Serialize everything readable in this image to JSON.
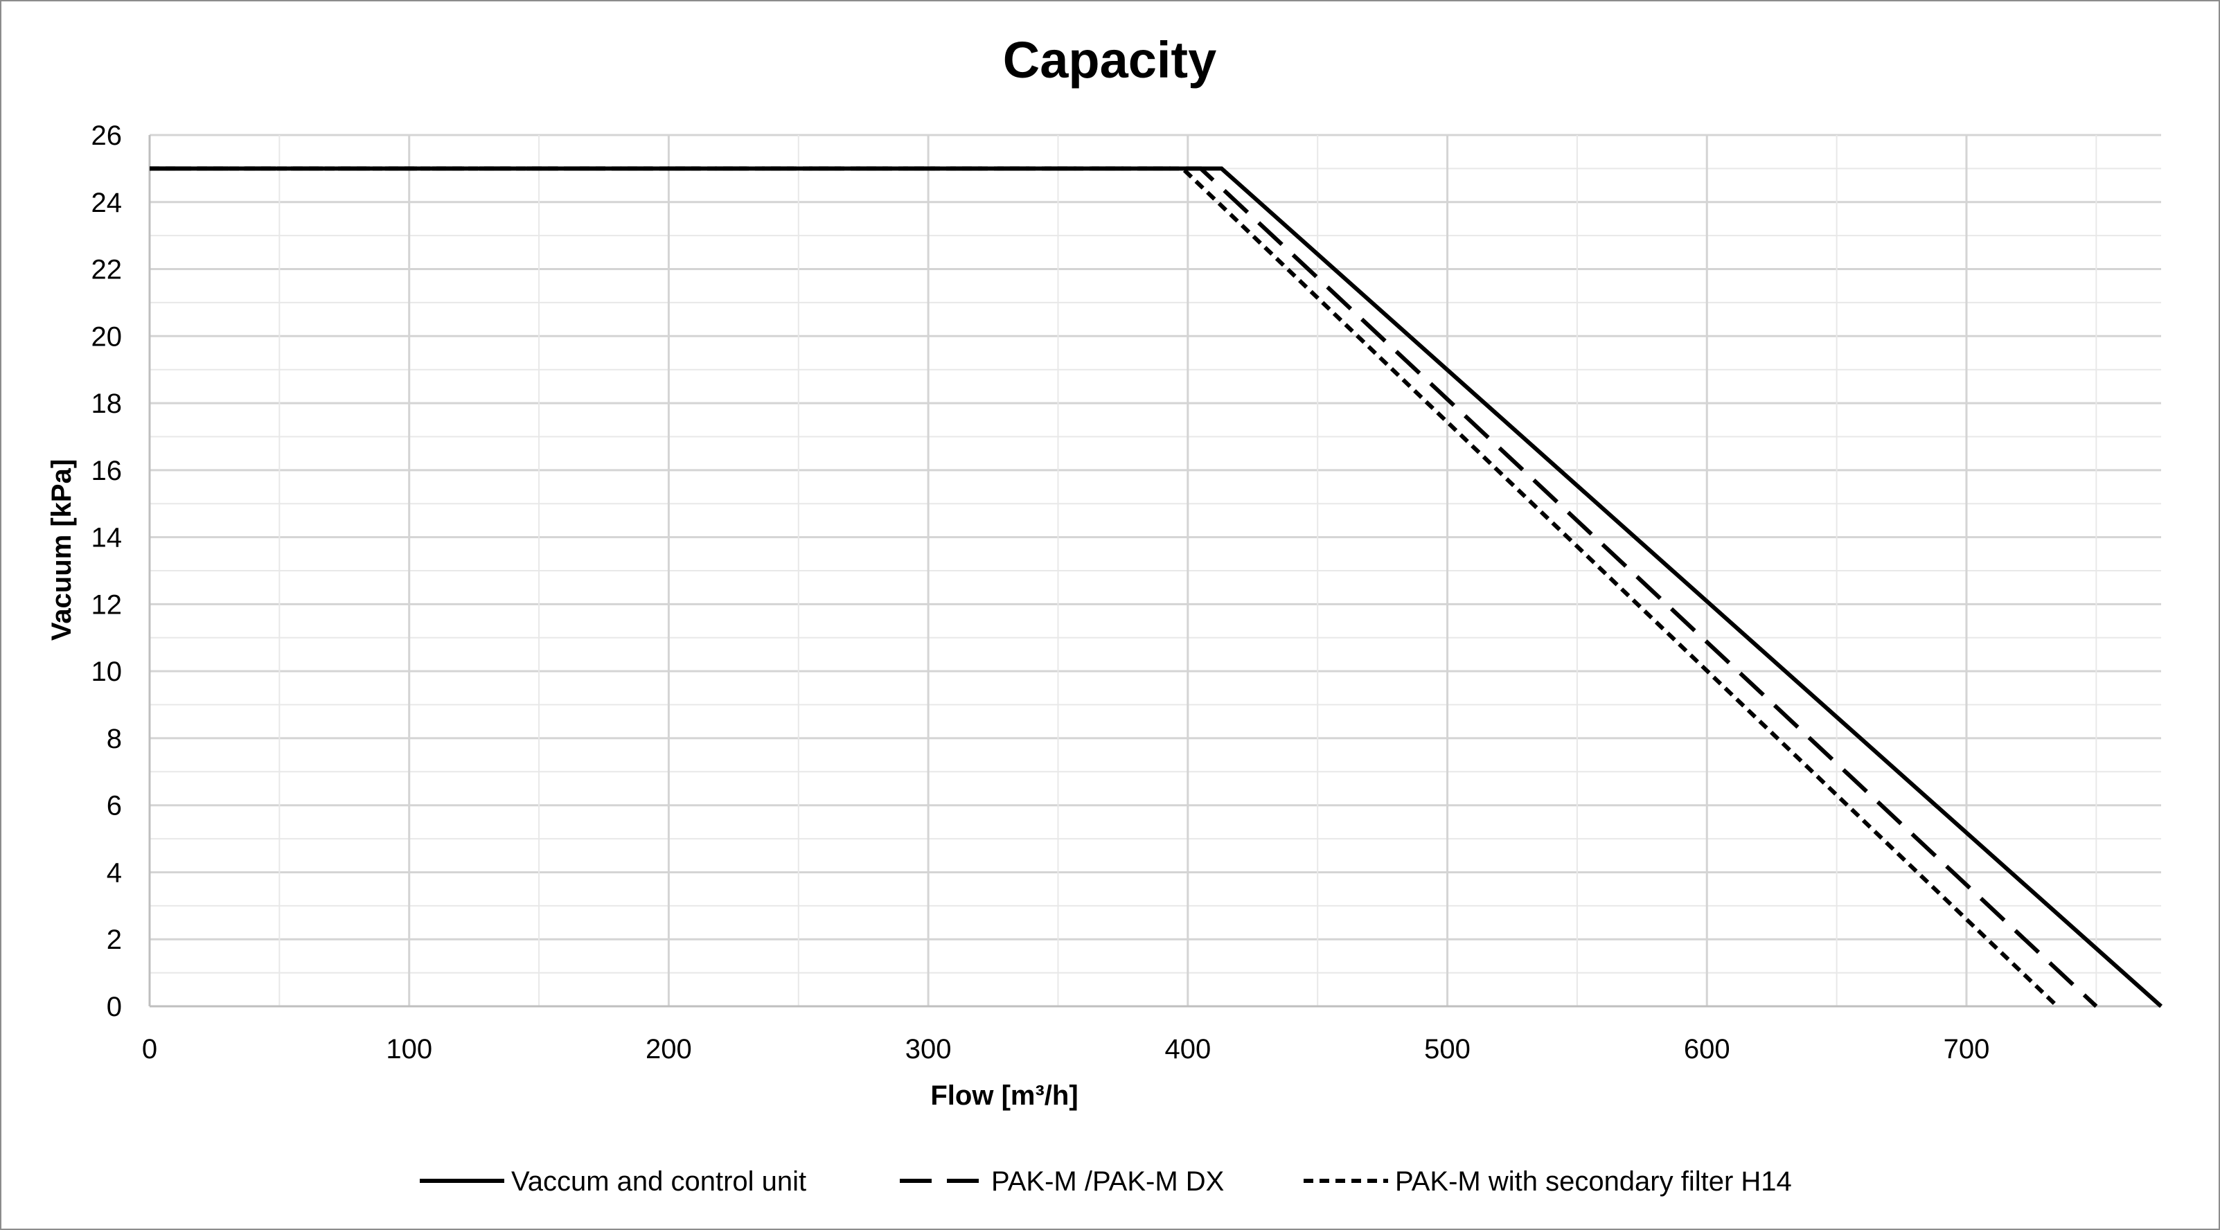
{
  "chart_data": {
    "type": "line",
    "title": "Capacity",
    "xlabel": "Flow [m³/h]",
    "ylabel": "Vacuum [kPa]",
    "xlim": [
      0,
      775
    ],
    "ylim": [
      0,
      26
    ],
    "x_ticks": [
      0,
      100,
      200,
      300,
      400,
      500,
      600,
      700
    ],
    "y_ticks": [
      0,
      2,
      4,
      6,
      8,
      10,
      12,
      14,
      16,
      18,
      20,
      22,
      24,
      26
    ],
    "x_tick_labels": [
      "0",
      "100",
      "200",
      "300",
      "400",
      "500",
      "600",
      "700"
    ],
    "y_tick_labels": [
      "0",
      "2",
      "4",
      "6",
      "8",
      "10",
      "12",
      "14",
      "16",
      "18",
      "20",
      "22",
      "24",
      "26"
    ],
    "grid": true,
    "legend_position": "bottom",
    "series": [
      {
        "name": "Vaccum and control unit",
        "style": "solid",
        "color": "#000000",
        "x": [
          0,
          413,
          775
        ],
        "y": [
          25,
          25,
          0
        ]
      },
      {
        "name": "PAK-M /PAK-M DX",
        "style": "dashed",
        "color": "#000000",
        "x": [
          0,
          405,
          750
        ],
        "y": [
          25,
          25,
          0
        ]
      },
      {
        "name": "PAK-M with secondary filter H14",
        "style": "dotted",
        "color": "#000000",
        "x": [
          0,
          398,
          735
        ],
        "y": [
          25,
          25,
          0
        ]
      }
    ]
  }
}
